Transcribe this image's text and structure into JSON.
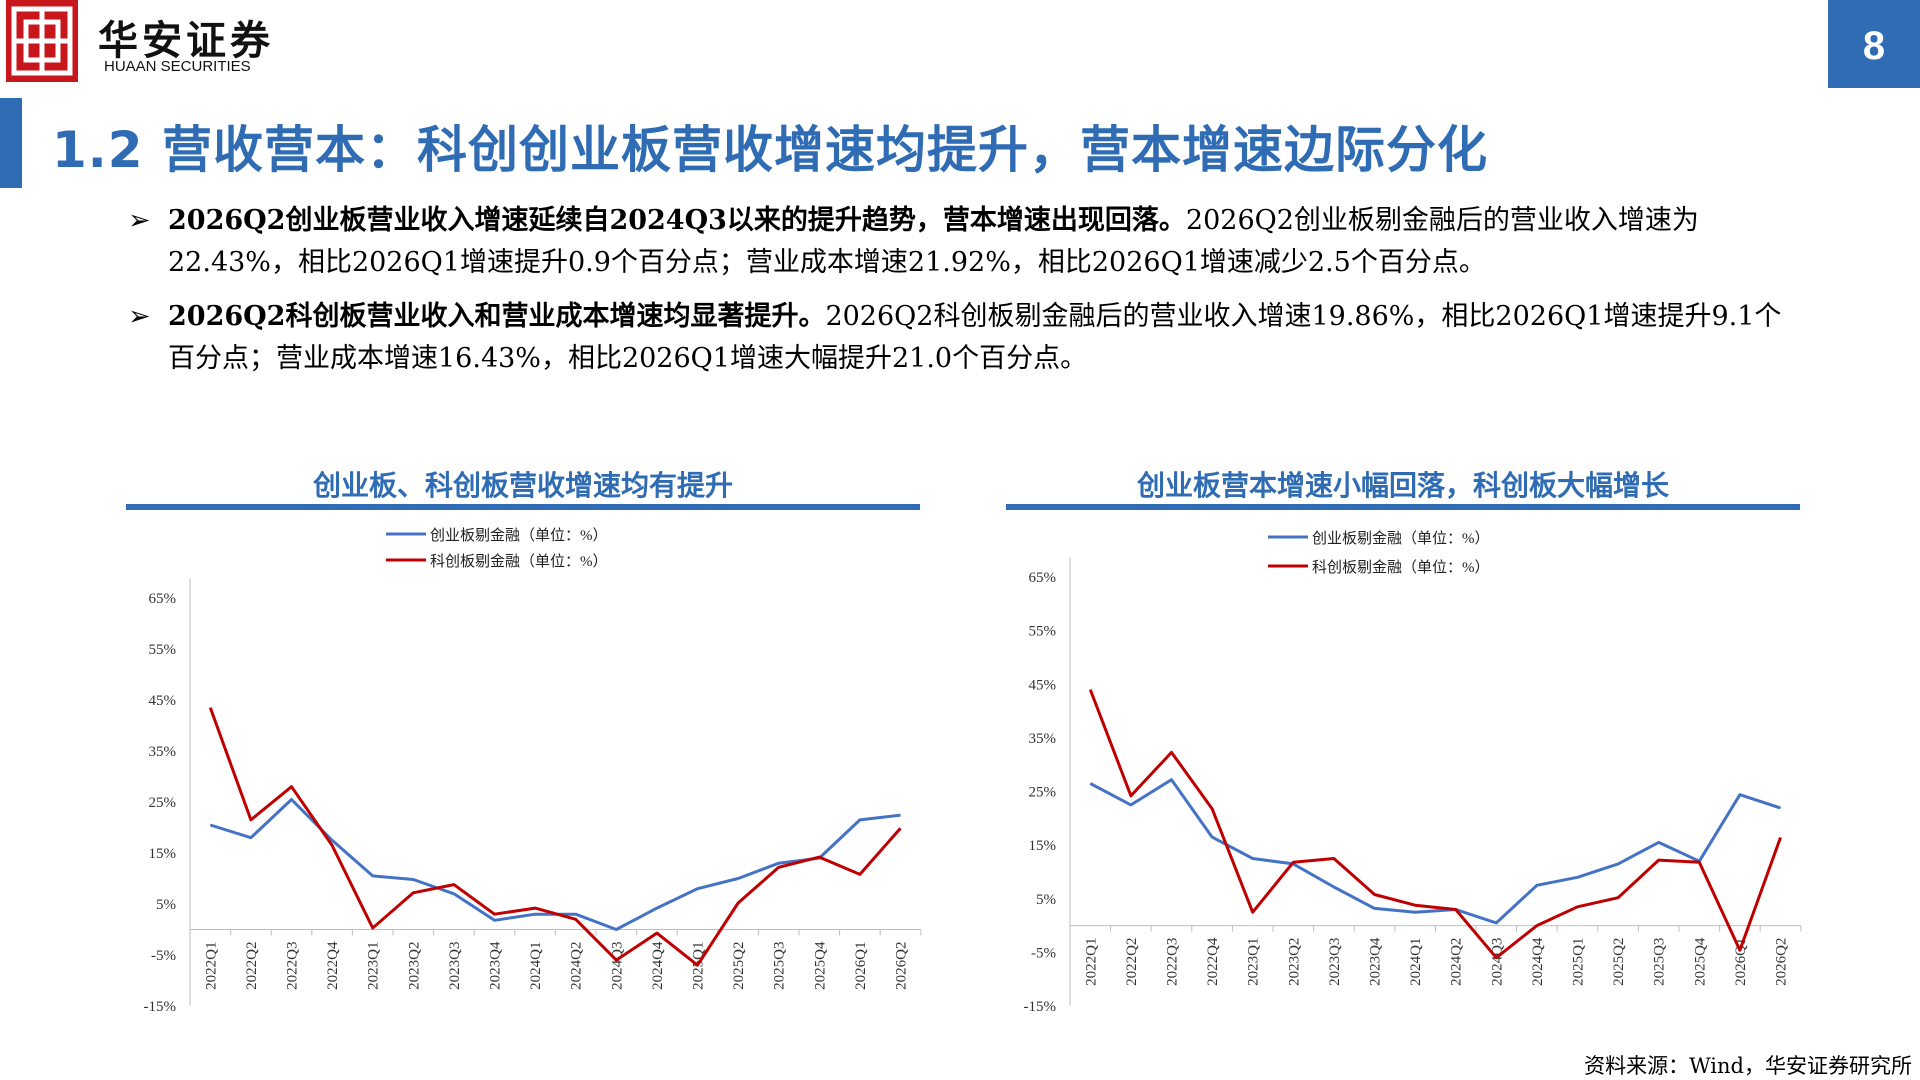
{
  "header": {
    "brand_cn": "华安证券",
    "brand_en": "HUAAN SECURITIES",
    "page_number": "8",
    "colors": {
      "brand_red": "#c8161d",
      "accent_blue": "#2f6cb3"
    },
    "logo_icon": "huaan-logo-icon"
  },
  "title": "1.2 营收营本：科创创业板营收增速均提升，营本增速边际分化",
  "bullets": [
    {
      "bold": "2026Q2创业板营业收入增速延续自2024Q3以来的提升趋势，营本增速出现回落。",
      "text": "2026Q2创业板剔金融后的营业收入增速为22.43%，相比2026Q1增速提升0.9个百分点；营业成本增速21.92%，相比2026Q1增速减少2.5个百分点。"
    },
    {
      "bold": "2026Q2科创板营业收入和营业成本增速均显著提升。",
      "text": "2026Q2科创板剔金融后的营业收入增速19.86%，相比2026Q1增速提升9.1个百分点；营业成本增速16.43%，相比2026Q1增速大幅提升21.0个百分点。"
    }
  ],
  "chart_data": [
    {
      "type": "line",
      "title": "创业板、科创板营收增速均有提升",
      "x": [
        "2022Q1",
        "2022Q2",
        "2022Q3",
        "2022Q4",
        "2023Q1",
        "2023Q2",
        "2023Q3",
        "2023Q4",
        "2024Q1",
        "2024Q2",
        "2024Q3",
        "2024Q4",
        "2025Q1",
        "2025Q2",
        "2025Q3",
        "2025Q4",
        "2026Q1",
        "2026Q2"
      ],
      "ylim": [
        -15,
        65
      ],
      "yticks": [
        "65%",
        "55%",
        "45%",
        "35%",
        "25%",
        "15%",
        "5%",
        "-5%",
        "-15%"
      ],
      "legend_position": "top-center",
      "series": [
        {
          "name": "创业板剔金融（单位：%）",
          "color": "#4472c4",
          "values": [
            20.5,
            18.0,
            25.5,
            17.5,
            10.5,
            9.8,
            7.0,
            1.8,
            3.0,
            3.0,
            0.0,
            4.2,
            8.0,
            10.0,
            13.0,
            14.0,
            21.5,
            22.43
          ]
        },
        {
          "name": "科创板剔金融（单位：%）",
          "color": "#c00000",
          "values": [
            43.5,
            21.5,
            28.0,
            16.5,
            0.3,
            7.2,
            8.8,
            3.0,
            4.2,
            2.0,
            -6.0,
            -0.7,
            -7.0,
            5.2,
            12.2,
            14.2,
            10.8,
            19.86
          ]
        }
      ]
    },
    {
      "type": "line",
      "title": "创业板营本增速小幅回落，科创板大幅增长",
      "x": [
        "2022Q1",
        "2022Q2",
        "2022Q3",
        "2022Q4",
        "2023Q1",
        "2023Q2",
        "2023Q3",
        "2023Q4",
        "2024Q1",
        "2024Q2",
        "2024Q3",
        "2024Q4",
        "2025Q1",
        "2025Q2",
        "2025Q3",
        "2025Q4",
        "2026Q1",
        "2026Q2"
      ],
      "ylim": [
        -15,
        65
      ],
      "yticks": [
        "65%",
        "55%",
        "45%",
        "35%",
        "25%",
        "15%",
        "5%",
        "-5%",
        "-15%"
      ],
      "legend_position": "top-center",
      "series": [
        {
          "name": "创业板剔金融（单位：%）",
          "color": "#4472c4",
          "values": [
            26.5,
            22.5,
            27.2,
            16.5,
            12.5,
            11.5,
            7.2,
            3.2,
            2.5,
            3.0,
            0.5,
            7.5,
            9.0,
            11.5,
            15.5,
            12.0,
            24.4,
            21.92
          ]
        },
        {
          "name": "科创板剔金融（单位：%）",
          "color": "#c00000",
          "values": [
            44.0,
            24.2,
            32.3,
            21.8,
            2.5,
            11.8,
            12.5,
            5.8,
            3.8,
            3.0,
            -6.0,
            0.0,
            3.5,
            5.2,
            12.2,
            11.8,
            -4.6,
            16.43
          ]
        }
      ]
    }
  ],
  "source": "资料来源：Wind，华安证券研究所"
}
